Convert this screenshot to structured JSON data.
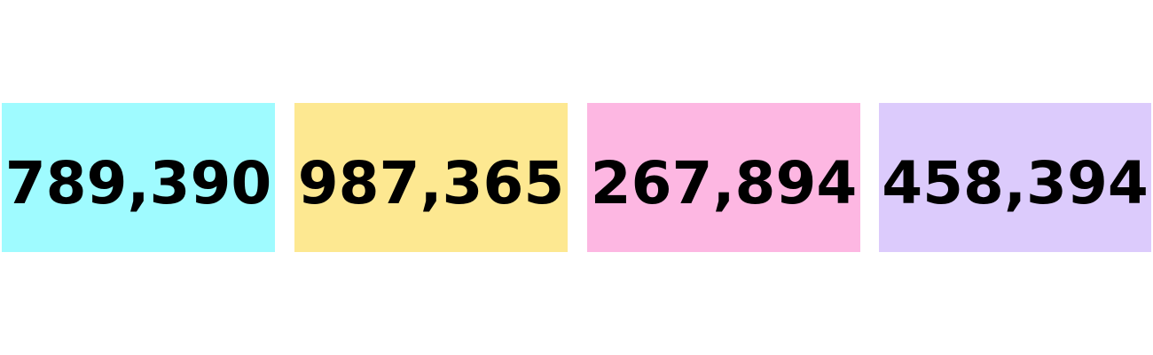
{
  "cards": [
    {
      "value": "789,390",
      "color": "#9ffbff"
    },
    {
      "value": "987,365",
      "color": "#fde891"
    },
    {
      "value": "267,894",
      "color": "#fdb7e2"
    },
    {
      "value": "458,394",
      "color": "#dccbfc"
    }
  ]
}
